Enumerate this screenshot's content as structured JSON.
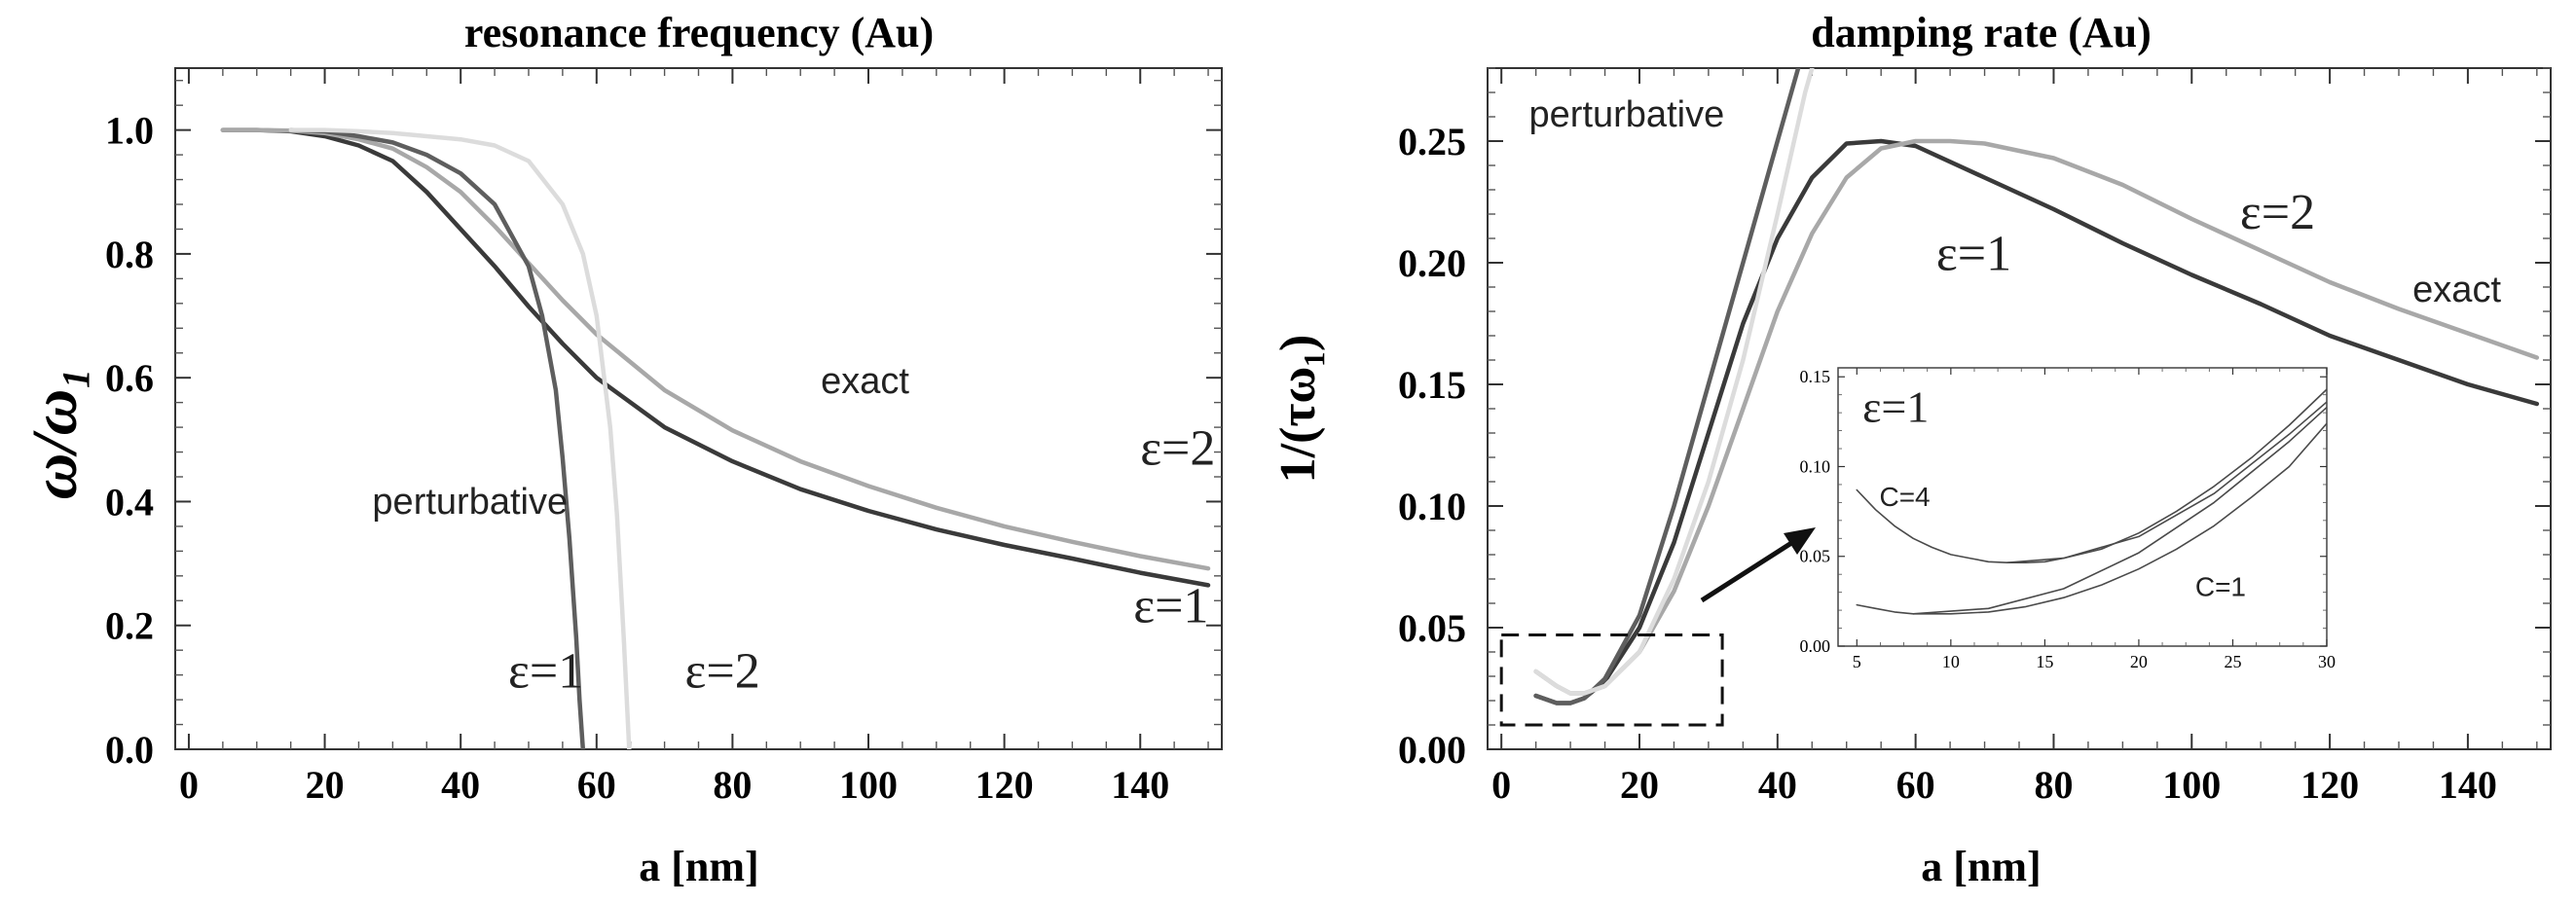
{
  "chart_data": [
    {
      "type": "line",
      "title": "resonance frequency (Au)",
      "xlabel": "a [nm]",
      "ylabel": "ω/ω₁",
      "xlim": [
        -2,
        152
      ],
      "ylim": [
        0,
        1.1
      ],
      "xticks": [
        0,
        20,
        40,
        60,
        80,
        100,
        120,
        140
      ],
      "xtick_labels": [
        "0",
        "20",
        "40",
        "60",
        "80",
        "100",
        "120",
        "140"
      ],
      "yticks": [
        0,
        0.2,
        0.4,
        0.6,
        0.8,
        1.0
      ],
      "ytick_labels": [
        "0.0",
        "0.2",
        "0.4",
        "0.6",
        "0.8",
        "1.0"
      ],
      "series": [
        {
          "name": "exact ε=1",
          "color": "#3a3a3a",
          "x": [
            5,
            10,
            15,
            20,
            25,
            30,
            35,
            40,
            45,
            50,
            55,
            60,
            70,
            80,
            90,
            100,
            110,
            120,
            130,
            140,
            150
          ],
          "y": [
            1.0,
            1.0,
            0.998,
            0.99,
            0.975,
            0.95,
            0.9,
            0.84,
            0.78,
            0.715,
            0.655,
            0.6,
            0.52,
            0.465,
            0.42,
            0.385,
            0.355,
            0.33,
            0.308,
            0.285,
            0.265
          ]
        },
        {
          "name": "exact ε=2",
          "color": "#a8a8a8",
          "x": [
            5,
            10,
            15,
            20,
            25,
            30,
            35,
            40,
            45,
            50,
            55,
            60,
            70,
            80,
            90,
            100,
            110,
            120,
            130,
            140,
            150
          ],
          "y": [
            1.0,
            1.0,
            0.999,
            0.995,
            0.985,
            0.97,
            0.94,
            0.9,
            0.845,
            0.785,
            0.725,
            0.67,
            0.58,
            0.515,
            0.465,
            0.425,
            0.39,
            0.36,
            0.335,
            0.312,
            0.292
          ]
        },
        {
          "name": "perturbative ε=1",
          "color": "#5e5e5e",
          "x": [
            15,
            20,
            25,
            30,
            35,
            40,
            45,
            50,
            52,
            54,
            55,
            56,
            57,
            57.5,
            58
          ],
          "y": [
            1.0,
            0.998,
            0.99,
            0.98,
            0.96,
            0.93,
            0.88,
            0.78,
            0.7,
            0.58,
            0.47,
            0.34,
            0.18,
            0.08,
            0.0
          ]
        },
        {
          "name": "perturbative ε=2",
          "color": "#dcdcdc",
          "x": [
            15,
            20,
            25,
            30,
            35,
            40,
            45,
            50,
            55,
            58,
            60,
            62,
            63,
            64,
            64.8
          ],
          "y": [
            1.0,
            1.0,
            0.998,
            0.995,
            0.99,
            0.985,
            0.975,
            0.95,
            0.88,
            0.8,
            0.7,
            0.52,
            0.38,
            0.18,
            0.0
          ]
        }
      ],
      "annotations": [
        {
          "text": "exact",
          "x": 93,
          "y": 0.575,
          "font": "sans"
        },
        {
          "text": "ε=2",
          "x": 140,
          "y": 0.46,
          "font": "serif"
        },
        {
          "text": "ε=1",
          "x": 139,
          "y": 0.205,
          "font": "serif"
        },
        {
          "text": "perturbative",
          "x": 27,
          "y": 0.38,
          "font": "sans"
        },
        {
          "text": "ε=1",
          "x": 47,
          "y": 0.1,
          "font": "serif"
        },
        {
          "text": "ε=2",
          "x": 73,
          "y": 0.1,
          "font": "serif"
        }
      ]
    },
    {
      "type": "line",
      "title": "damping rate (Au)",
      "xlabel": "a [nm]",
      "ylabel": "1/(τω₁)",
      "xlim": [
        -2,
        152
      ],
      "ylim": [
        0,
        0.28
      ],
      "xticks": [
        0,
        20,
        40,
        60,
        80,
        100,
        120,
        140
      ],
      "xtick_labels": [
        "0",
        "20",
        "40",
        "60",
        "80",
        "100",
        "120",
        "140"
      ],
      "yticks": [
        0,
        0.05,
        0.1,
        0.15,
        0.2,
        0.25
      ],
      "ytick_labels": [
        "0.00",
        "0.05",
        "0.10",
        "0.15",
        "0.20",
        "0.25"
      ],
      "series": [
        {
          "name": "exact ε=1",
          "color": "#3a3a3a",
          "x": [
            5,
            8,
            10,
            12,
            15,
            20,
            25,
            30,
            35,
            40,
            45,
            50,
            55,
            60,
            70,
            80,
            90,
            100,
            110,
            120,
            130,
            140,
            150
          ],
          "y": [
            0.022,
            0.019,
            0.019,
            0.021,
            0.028,
            0.05,
            0.085,
            0.13,
            0.175,
            0.21,
            0.235,
            0.249,
            0.25,
            0.248,
            0.235,
            0.222,
            0.208,
            0.195,
            0.183,
            0.17,
            0.16,
            0.15,
            0.142
          ]
        },
        {
          "name": "exact ε=2",
          "color": "#a8a8a8",
          "x": [
            5,
            8,
            10,
            12,
            15,
            20,
            25,
            30,
            35,
            40,
            45,
            50,
            55,
            60,
            65,
            70,
            80,
            90,
            100,
            110,
            120,
            130,
            140,
            150
          ],
          "y": [
            0.032,
            0.026,
            0.023,
            0.023,
            0.026,
            0.04,
            0.065,
            0.1,
            0.14,
            0.18,
            0.212,
            0.235,
            0.247,
            0.25,
            0.25,
            0.249,
            0.243,
            0.232,
            0.218,
            0.205,
            0.192,
            0.181,
            0.171,
            0.161
          ]
        },
        {
          "name": "perturbative ε=1",
          "color": "#5e5e5e",
          "x": [
            5,
            8,
            10,
            12,
            15,
            20,
            25,
            30,
            35,
            40,
            42,
            43
          ],
          "y": [
            0.022,
            0.019,
            0.019,
            0.021,
            0.029,
            0.055,
            0.1,
            0.15,
            0.2,
            0.25,
            0.27,
            0.28
          ]
        },
        {
          "name": "perturbative ε=2",
          "color": "#dcdcdc",
          "x": [
            5,
            8,
            10,
            12,
            15,
            20,
            25,
            30,
            35,
            40,
            42,
            44,
            45
          ],
          "y": [
            0.032,
            0.026,
            0.023,
            0.023,
            0.026,
            0.04,
            0.07,
            0.11,
            0.16,
            0.22,
            0.245,
            0.27,
            0.28
          ]
        }
      ],
      "annotations": [
        {
          "text": "perturbative",
          "x": 4,
          "y": 0.256,
          "font": "sans"
        },
        {
          "text": "ε=1",
          "x": 63,
          "y": 0.197,
          "font": "serif"
        },
        {
          "text": "ε=2",
          "x": 107,
          "y": 0.214,
          "font": "serif"
        },
        {
          "text": "exact",
          "x": 132,
          "y": 0.184,
          "font": "sans"
        }
      ],
      "highlight_box": {
        "x": [
          0,
          32
        ],
        "y": [
          0.01,
          0.047
        ]
      },
      "inset": {
        "type": "line",
        "xlim": [
          4,
          30
        ],
        "ylim": [
          0,
          0.155
        ],
        "xticks": [
          5,
          10,
          15,
          20,
          25,
          30
        ],
        "xtick_labels": [
          "5",
          "10",
          "15",
          "20",
          "25",
          "30"
        ],
        "yticks": [
          0,
          0.05,
          0.1,
          0.15
        ],
        "ytick_labels": [
          "0.00",
          "0.05",
          "0.10",
          "0.15"
        ],
        "series": [
          {
            "name": "C=4",
            "color": "#4a4a4a",
            "x": [
              5,
              6,
              7,
              8,
              9,
              10,
              11,
              12,
              13,
              14,
              15,
              16,
              18,
              20,
              22,
              24,
              26,
              28,
              30
            ],
            "y": [
              0.087,
              0.076,
              0.067,
              0.06,
              0.055,
              0.051,
              0.049,
              0.047,
              0.0465,
              0.0465,
              0.047,
              0.049,
              0.054,
              0.063,
              0.075,
              0.089,
              0.105,
              0.123,
              0.143
            ]
          },
          {
            "name": "C=4 bound",
            "color": "#4a4a4a",
            "x": [
              13,
              16,
              20,
              24,
              28,
              30
            ],
            "y": [
              0.0465,
              0.049,
              0.061,
              0.085,
              0.118,
              0.136
            ]
          },
          {
            "name": "C=1 bound",
            "color": "#4a4a4a",
            "x": [
              8,
              12,
              16,
              20,
              24,
              28,
              30
            ],
            "y": [
              0.018,
              0.021,
              0.032,
              0.052,
              0.08,
              0.114,
              0.133
            ]
          },
          {
            "name": "C=1",
            "color": "#4a4a4a",
            "x": [
              5,
              6,
              7,
              8,
              9,
              10,
              12,
              14,
              16,
              18,
              20,
              22,
              24,
              26,
              28,
              30
            ],
            "y": [
              0.023,
              0.021,
              0.019,
              0.018,
              0.018,
              0.018,
              0.019,
              0.022,
              0.027,
              0.034,
              0.043,
              0.054,
              0.067,
              0.083,
              0.1,
              0.124
            ]
          }
        ],
        "annotations": [
          {
            "text": "ε=1",
            "x": 5.3,
            "y": 0.125,
            "font": "serif"
          },
          {
            "text": "C=4",
            "x": 6.2,
            "y": 0.078,
            "font": "sans"
          },
          {
            "text": "C=1",
            "x": 23,
            "y": 0.028,
            "font": "sans"
          }
        ]
      }
    }
  ]
}
